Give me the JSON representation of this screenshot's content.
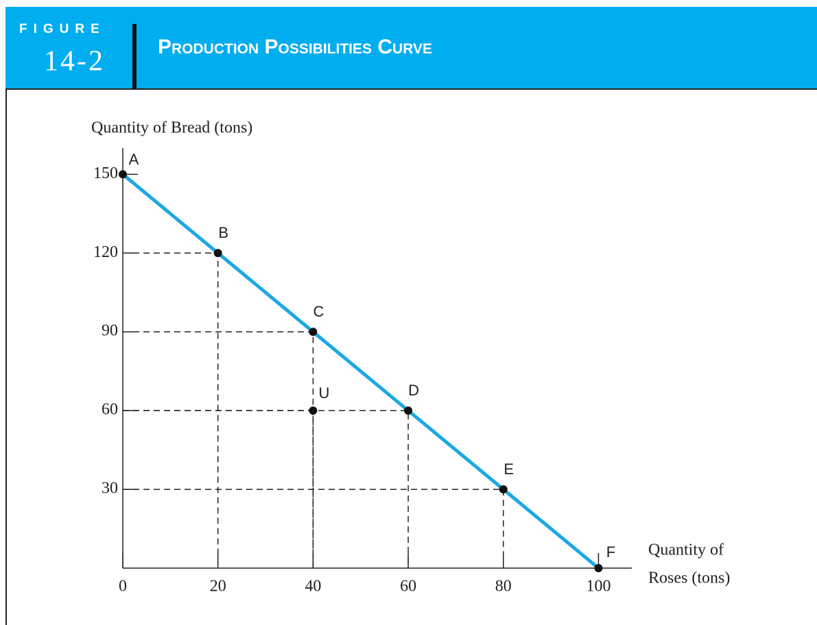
{
  "chart_data": {
    "type": "line",
    "figure_label": "FIGURE",
    "figure_number": "14-2",
    "title": "Production Possibilities Curve",
    "ylabel": "Quantity of Bread (tons)",
    "xlabel": [
      "Quantity of",
      "Roses (tons)"
    ],
    "x": [
      0,
      20,
      40,
      60,
      80,
      100
    ],
    "values": [
      150,
      120,
      90,
      60,
      30,
      0
    ],
    "point_labels": [
      "A",
      "B",
      "C",
      "D",
      "E",
      "F"
    ],
    "extra_points": [
      {
        "label": "U",
        "x": 40,
        "y": 60
      }
    ],
    "color": "#1ba8e4",
    "xlim": [
      0,
      107
    ],
    "ylim": [
      0,
      160
    ],
    "xticks": [
      0,
      20,
      40,
      60,
      80,
      100
    ],
    "yticks": [
      30,
      60,
      90,
      120,
      150
    ]
  }
}
